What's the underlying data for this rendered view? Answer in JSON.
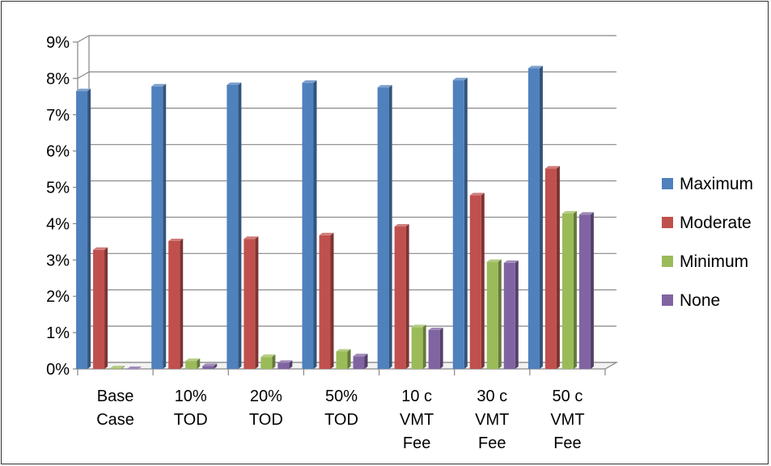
{
  "chart_data": {
    "type": "bar",
    "title": "",
    "xlabel": "",
    "ylabel": "",
    "ylim": [
      0,
      9
    ],
    "y_unit": "%",
    "y_ticks": [
      "0%",
      "1%",
      "2%",
      "3%",
      "4%",
      "5%",
      "6%",
      "7%",
      "8%",
      "9%"
    ],
    "grid": "horizontal",
    "legend_position": "right",
    "categories": [
      [
        "Base",
        "Case"
      ],
      [
        "10%",
        "TOD"
      ],
      [
        "20%",
        "TOD"
      ],
      [
        "50%",
        "TOD"
      ],
      [
        "10 c",
        "VMT",
        "Fee"
      ],
      [
        "30 c",
        "VMT",
        "Fee"
      ],
      [
        "50 c",
        "VMT",
        "Fee"
      ]
    ],
    "series": [
      {
        "name": "Maximum",
        "color": "#4F81BD",
        "values": [
          7.65,
          7.78,
          7.82,
          7.88,
          7.75,
          7.95,
          8.28
        ]
      },
      {
        "name": "Moderate",
        "color": "#C0504D",
        "values": [
          3.28,
          3.52,
          3.58,
          3.68,
          3.92,
          4.78,
          5.52
        ]
      },
      {
        "name": "Minimum",
        "color": "#9BBB59",
        "values": [
          0.02,
          0.22,
          0.33,
          0.48,
          1.15,
          2.95,
          4.28
        ]
      },
      {
        "name": "None",
        "color": "#8064A2",
        "values": [
          0.0,
          0.08,
          0.17,
          0.35,
          1.07,
          2.92,
          4.25
        ]
      }
    ]
  }
}
